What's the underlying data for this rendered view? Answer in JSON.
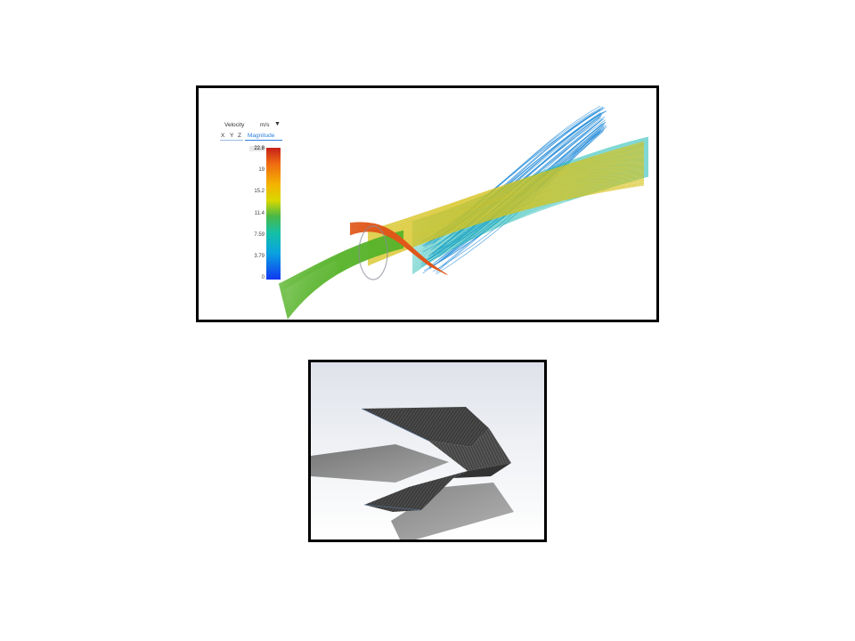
{
  "flow_view": {
    "legend": {
      "title": "Velocity",
      "unit": "m/s",
      "axes": [
        "X",
        "Y",
        "Z"
      ],
      "mode": "Magnitude",
      "ticks": [
        "22.8",
        "19",
        "15.2",
        "11.4",
        "7.59",
        "3.79",
        "0"
      ],
      "max": 22.8,
      "min": 0,
      "colors": [
        "#c6201a",
        "#ef6a12",
        "#f4b400",
        "#d8d800",
        "#48b848",
        "#14c0a8",
        "#0aa2e0",
        "#1038f0"
      ]
    }
  },
  "part_view": {
    "shade": "#3a3a3a",
    "shadow": "#6e6e6e"
  }
}
